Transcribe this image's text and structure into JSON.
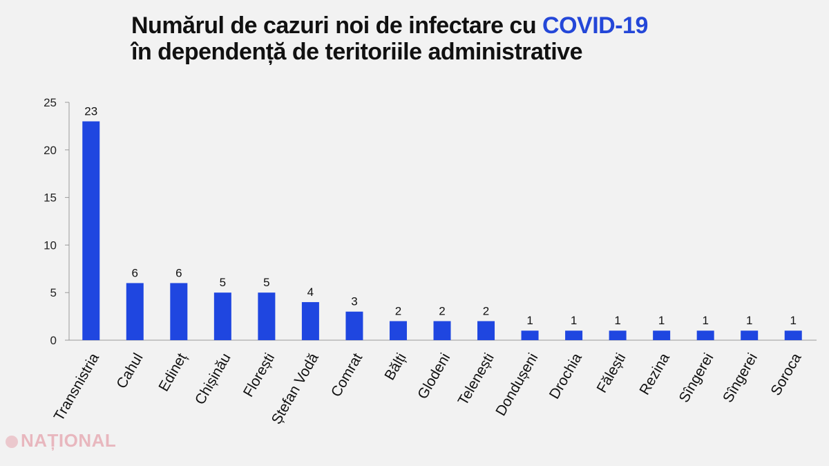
{
  "title": {
    "line1_prefix": "Numărul de cazuri noi de infectare cu ",
    "line1_highlight": "COVID-19",
    "line2": "în dependență de teritoriile administrative"
  },
  "colors": {
    "bar": "#1f46e0",
    "highlight": "#2447d8",
    "axis": "#999999"
  },
  "chart_data": {
    "type": "bar",
    "title": "Numărul de cazuri noi de infectare cu COVID-19 în dependență de teritoriile administrative",
    "categories": [
      "Transnistria",
      "Cahul",
      "Edineț",
      "Chișinău",
      "Florești",
      "Ștefan Vodă",
      "Comrat",
      "Bălți",
      "Glodeni",
      "Telenești",
      "Dondușeni",
      "Drochia",
      "Fălești",
      "Rezina",
      "Sîngerei",
      "Sîngerei",
      "Soroca"
    ],
    "values": [
      23,
      6,
      6,
      5,
      5,
      4,
      3,
      2,
      2,
      2,
      1,
      1,
      1,
      1,
      1,
      1,
      1
    ],
    "ylim": [
      0,
      25
    ],
    "yticks": [
      0,
      5,
      10,
      15,
      20,
      25
    ],
    "xlabel": "",
    "ylabel": "",
    "data_labels": true,
    "grid": false,
    "legend": "none"
  },
  "logo": {
    "text": "NAȚIONAL"
  }
}
